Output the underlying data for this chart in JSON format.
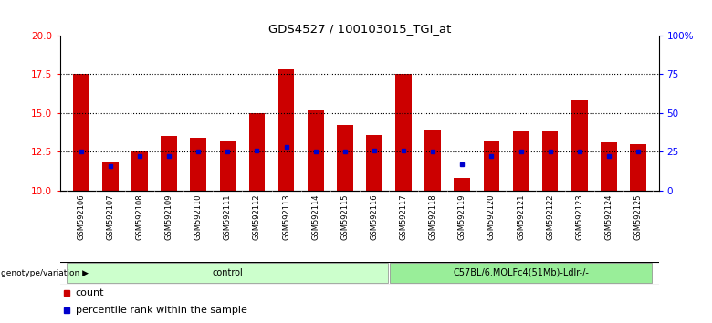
{
  "title": "GDS4527 / 100103015_TGI_at",
  "samples": [
    "GSM592106",
    "GSM592107",
    "GSM592108",
    "GSM592109",
    "GSM592110",
    "GSM592111",
    "GSM592112",
    "GSM592113",
    "GSM592114",
    "GSM592115",
    "GSM592116",
    "GSM592117",
    "GSM592118",
    "GSM592119",
    "GSM592120",
    "GSM592121",
    "GSM592122",
    "GSM592123",
    "GSM592124",
    "GSM592125"
  ],
  "bar_heights": [
    17.5,
    11.8,
    12.6,
    13.5,
    13.4,
    13.2,
    15.0,
    17.8,
    15.2,
    14.2,
    13.6,
    17.5,
    13.9,
    10.8,
    13.2,
    13.8,
    13.8,
    15.8,
    13.1,
    13.0
  ],
  "blue_dots": [
    12.5,
    11.6,
    12.2,
    12.2,
    12.5,
    12.5,
    12.6,
    12.8,
    12.5,
    12.5,
    12.6,
    12.6,
    12.5,
    11.7,
    12.2,
    12.5,
    12.5,
    12.5,
    12.2,
    12.5
  ],
  "ylim_left": [
    10,
    20
  ],
  "ylim_right": [
    0,
    100
  ],
  "yticks_left": [
    10,
    12.5,
    15,
    17.5,
    20
  ],
  "yticks_right": [
    0,
    25,
    50,
    75,
    100
  ],
  "bar_color": "#cc0000",
  "dot_color": "#0000cc",
  "group_labels": [
    "control",
    "C57BL/6.MOLFc4(51Mb)-Ldlr-/-"
  ],
  "group_ranges": [
    [
      0,
      10
    ],
    [
      11,
      19
    ]
  ],
  "group_colors": [
    "#ccffcc",
    "#99ee99"
  ],
  "bg_color": "#ffffff",
  "plot_bg": "#ffffff",
  "tick_area_bg": "#c8c8c8",
  "legend_count_label": "count",
  "legend_pct_label": "percentile rank within the sample",
  "genotype_label": "genotype/variation",
  "dotted_lines": [
    12.5,
    15.0,
    17.5
  ],
  "bar_width": 0.55
}
